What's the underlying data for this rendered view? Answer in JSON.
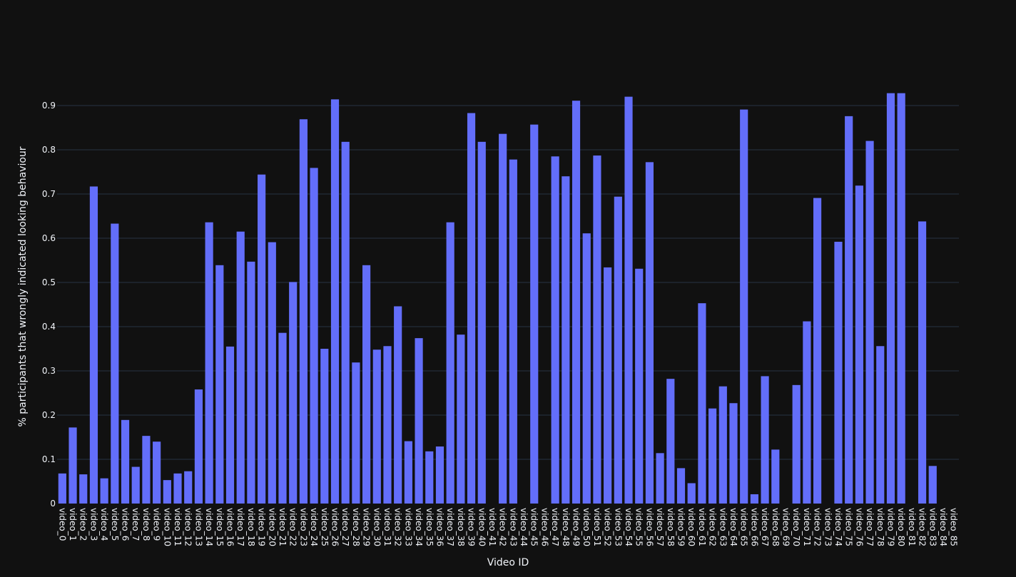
{
  "chart_data": {
    "type": "bar",
    "title": "",
    "xlabel": "Video ID",
    "ylabel": "% participants that wrongly indicated looking behaviour",
    "ylim": [
      0,
      0.95
    ],
    "yticks": [
      0,
      0.1,
      0.2,
      0.3,
      0.4,
      0.5,
      0.6,
      0.7,
      0.8,
      0.9
    ],
    "ytick_labels": [
      "0",
      "0.1",
      "0.2",
      "0.3",
      "0.4",
      "0.5",
      "0.6",
      "0.7",
      "0.8",
      "0.9"
    ],
    "grid": true,
    "legend": "none",
    "bar_color": "#636efa",
    "background": "#111111",
    "grid_color": "#283442",
    "categories": [
      "video_0",
      "video_1",
      "video_2",
      "video_3",
      "video_4",
      "video_5",
      "video_6",
      "video_7",
      "video_8",
      "video_9",
      "video_10",
      "video_11",
      "video_12",
      "video_13",
      "video_14",
      "video_15",
      "video_16",
      "video_17",
      "video_18",
      "video_19",
      "video_20",
      "video_21",
      "video_22",
      "video_23",
      "video_24",
      "video_25",
      "video_26",
      "video_27",
      "video_28",
      "video_29",
      "video_30",
      "video_31",
      "video_32",
      "video_33",
      "video_34",
      "video_35",
      "video_36",
      "video_37",
      "video_38",
      "video_39",
      "video_40",
      "video_41",
      "video_42",
      "video_43",
      "video_44",
      "video_45",
      "video_46",
      "video_47",
      "video_48",
      "video_49",
      "video_50",
      "video_51",
      "video_52",
      "video_53",
      "video_54",
      "video_55",
      "video_56",
      "video_57",
      "video_58",
      "video_59",
      "video_60",
      "video_61",
      "video_62",
      "video_63",
      "video_64",
      "video_65",
      "video_66",
      "video_67",
      "video_68",
      "video_69",
      "video_70",
      "video_71",
      "video_72",
      "video_73",
      "video_74",
      "video_75",
      "video_76",
      "video_77",
      "video_78",
      "video_79",
      "video_80",
      "video_81",
      "video_82",
      "video_83",
      "video_84",
      "video_85"
    ],
    "values": [
      0.068,
      0.172,
      0.066,
      0.717,
      0.057,
      0.633,
      0.189,
      0.083,
      0.153,
      0.14,
      0.053,
      0.068,
      0.073,
      0.258,
      0.636,
      0.539,
      0.355,
      0.615,
      0.547,
      0.744,
      0.591,
      0.386,
      0.501,
      0.869,
      0.759,
      0.35,
      0.914,
      0.818,
      0.319,
      0.539,
      0.348,
      0.356,
      0.446,
      0.141,
      0.374,
      0.118,
      0.129,
      0.636,
      0.382,
      0.883,
      0.818,
      0,
      0.836,
      0.778,
      0,
      0.857,
      0,
      0.785,
      0.74,
      0.911,
      0.611,
      0.787,
      0.534,
      0.694,
      0.92,
      0.531,
      0.772,
      0.114,
      0.282,
      0.08,
      0.046,
      0.453,
      0.215,
      0.265,
      0.227,
      0.891,
      0.021,
      0.288,
      0.122,
      0,
      0.268,
      0.412,
      0.691,
      0,
      0.592,
      0.876,
      0.719,
      0.82,
      0.356,
      0.928,
      0.928,
      0,
      0.638,
      0.085,
      0,
      0
    ]
  }
}
